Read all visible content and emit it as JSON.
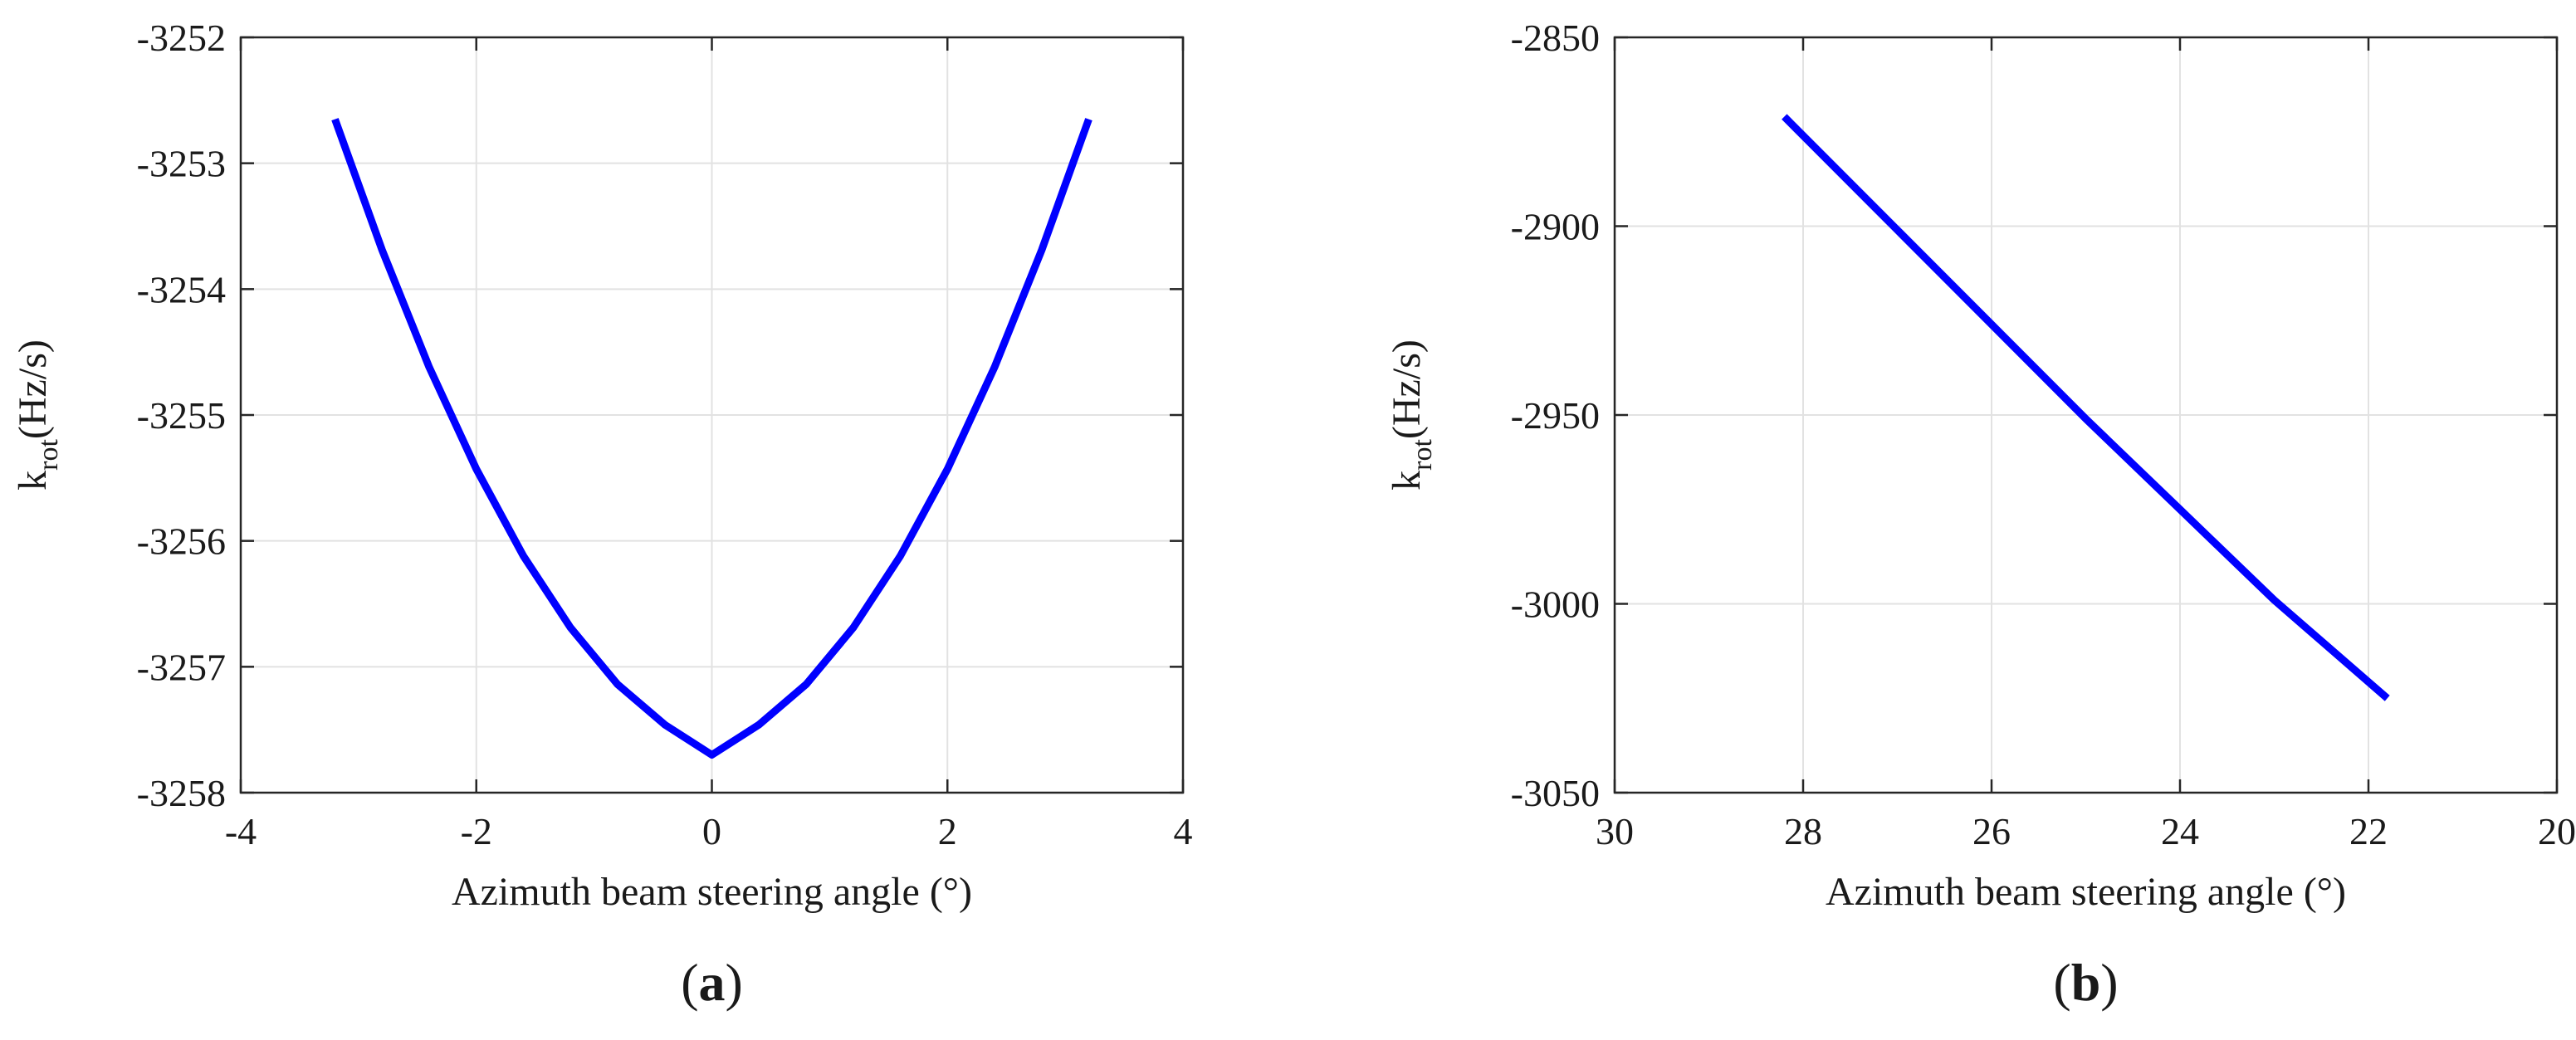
{
  "chart_data": [
    {
      "type": "line",
      "panel_label": "(a)",
      "xlabel": "Azimuth beam steering angle (°)",
      "ylabel_main": "k",
      "ylabel_sub": "rot",
      "ylabel_unit": "(Hz/s)",
      "xlim": [
        -4,
        4
      ],
      "ylim": [
        -3258,
        -3252
      ],
      "x_reversed": false,
      "xticks": [
        -4,
        -2,
        0,
        2,
        4
      ],
      "yticks": [
        -3252,
        -3253,
        -3254,
        -3255,
        -3256,
        -3257,
        -3258
      ],
      "grid": true,
      "series": [
        {
          "color": "#0000ff",
          "x": [
            -3.2,
            -2.8,
            -2.4,
            -2.0,
            -1.6,
            -1.2,
            -0.8,
            -0.4,
            0.0,
            0.4,
            0.8,
            1.2,
            1.6,
            2.0,
            2.4,
            2.8,
            3.2
          ],
          "y": [
            -3252.65,
            -3253.69,
            -3254.62,
            -3255.43,
            -3256.12,
            -3256.69,
            -3257.14,
            -3257.46,
            -3257.7,
            -3257.46,
            -3257.14,
            -3256.69,
            -3256.12,
            -3255.43,
            -3254.62,
            -3253.69,
            -3252.65
          ]
        }
      ]
    },
    {
      "type": "line",
      "panel_label": "(b)",
      "xlabel": "Azimuth beam steering angle (°)",
      "ylabel_main": "k",
      "ylabel_sub": "rot",
      "ylabel_unit": "(Hz/s)",
      "xlim": [
        30,
        20
      ],
      "ylim": [
        -3050,
        -2850
      ],
      "x_reversed": true,
      "xticks": [
        30,
        28,
        26,
        24,
        22,
        20
      ],
      "yticks": [
        -2850,
        -2900,
        -2950,
        -3000,
        -3050
      ],
      "grid": true,
      "series": [
        {
          "color": "#0000ff",
          "x": [
            28.2,
            27.0,
            26.0,
            25.0,
            24.0,
            23.0,
            21.8
          ],
          "y": [
            -2871,
            -2901,
            -2926,
            -2951,
            -2975,
            -2999,
            -3025
          ]
        }
      ]
    }
  ]
}
